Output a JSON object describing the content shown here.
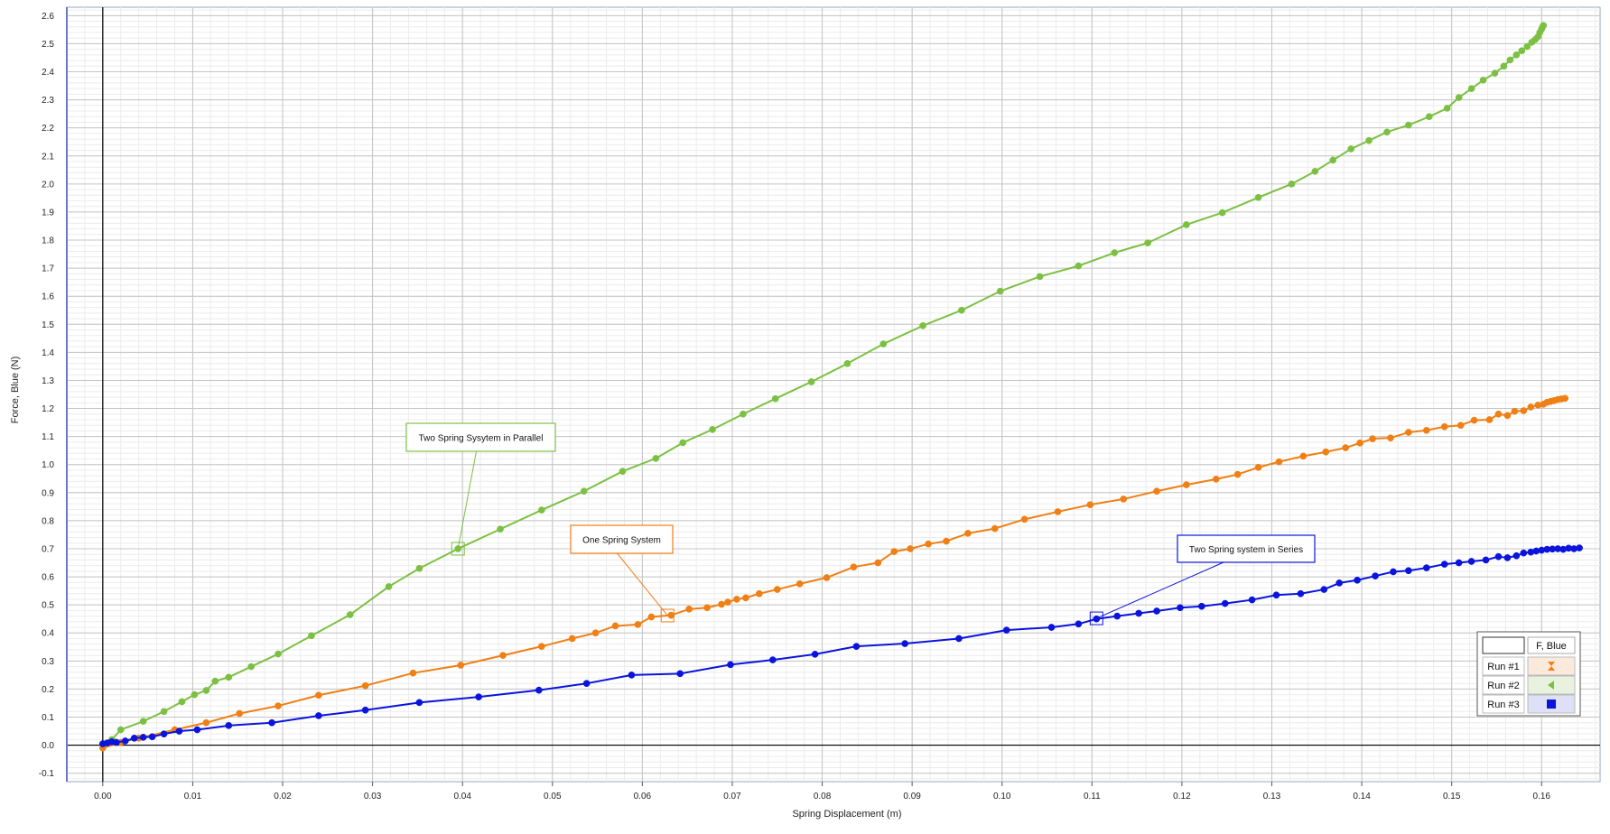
{
  "chart_data": {
    "type": "line",
    "xlabel": "Spring Displacement (m)",
    "ylabel": "Force, Blue (N)",
    "xlim": [
      -0.004,
      0.1665
    ],
    "ylim": [
      -0.13,
      2.63
    ],
    "x_ticks": [
      0.0,
      0.01,
      0.02,
      0.03,
      0.04,
      0.05,
      0.06,
      0.07,
      0.08,
      0.09,
      0.1,
      0.11,
      0.12,
      0.13,
      0.14,
      0.15,
      0.16
    ],
    "x_tick_labels": [
      "0.00",
      "0.01",
      "0.02",
      "0.03",
      "0.04",
      "0.05",
      "0.06",
      "0.07",
      "0.08",
      "0.09",
      "0.10",
      "0.11",
      "0.12",
      "0.13",
      "0.14",
      "0.15",
      "0.16"
    ],
    "y_ticks": [
      -0.1,
      0.0,
      0.1,
      0.2,
      0.3,
      0.4,
      0.5,
      0.6,
      0.7,
      0.8,
      0.9,
      1.0,
      1.1,
      1.2,
      1.3,
      1.4,
      1.5,
      1.6,
      1.7,
      1.8,
      1.9,
      2.0,
      2.1,
      2.2,
      2.3,
      2.4,
      2.5,
      2.6
    ],
    "y_tick_labels": [
      "-0.1",
      "0.0",
      "0.1",
      "0.2",
      "0.3",
      "0.4",
      "0.5",
      "0.6",
      "0.7",
      "0.8",
      "0.9",
      "1.0",
      "1.1",
      "1.2",
      "1.3",
      "1.4",
      "1.5",
      "1.6",
      "1.7",
      "1.8",
      "1.9",
      "2.0",
      "2.1",
      "2.2",
      "2.3",
      "2.4",
      "2.5",
      "2.6"
    ],
    "grid": true,
    "legend_position": "bottom-right",
    "legend": {
      "header": "F, Blue",
      "entries": [
        {
          "label": "Run #1",
          "marker": "hourglass-icon",
          "color": "#F07F14",
          "bg": "#FBE9DC"
        },
        {
          "label": "Run #2",
          "marker": "left-triangle-icon",
          "color": "#7CC043",
          "bg": "#E8F2DF"
        },
        {
          "label": "Run #3",
          "marker": "square-icon",
          "color": "#0A14DC",
          "bg": "#DDE0F6"
        }
      ]
    },
    "series": [
      {
        "color": "#F07F14",
        "x": [
          0.0,
          0.002,
          0.004,
          0.008,
          0.0115,
          0.0152,
          0.0195,
          0.024,
          0.0292,
          0.0345,
          0.0398,
          0.0445,
          0.0488,
          0.0522,
          0.0548,
          0.057,
          0.0595,
          0.061,
          0.0632,
          0.0652,
          0.0672,
          0.0688,
          0.0695,
          0.0705,
          0.0715,
          0.073,
          0.075,
          0.0775,
          0.0805,
          0.0835,
          0.0862,
          0.088,
          0.0898,
          0.0918,
          0.0938,
          0.0962,
          0.0992,
          0.1025,
          0.1062,
          0.1098,
          0.1135,
          0.1172,
          0.1205,
          0.1238,
          0.1262,
          0.1285,
          0.1308,
          0.1335,
          0.136,
          0.1382,
          0.1398,
          0.1412,
          0.1432,
          0.1452,
          0.1472,
          0.1492,
          0.151,
          0.1525,
          0.1542,
          0.1552,
          0.1562,
          0.157,
          0.158,
          0.1588,
          0.1596,
          0.1602,
          0.1606,
          0.161,
          0.1614,
          0.1618,
          0.1622,
          0.1626
        ],
        "y": [
          -0.01,
          0.01,
          0.025,
          0.055,
          0.08,
          0.113,
          0.14,
          0.178,
          0.212,
          0.257,
          0.285,
          0.32,
          0.352,
          0.38,
          0.4,
          0.425,
          0.43,
          0.457,
          0.463,
          0.485,
          0.49,
          0.502,
          0.51,
          0.52,
          0.525,
          0.54,
          0.555,
          0.575,
          0.597,
          0.635,
          0.65,
          0.69,
          0.7,
          0.717,
          0.727,
          0.755,
          0.772,
          0.805,
          0.832,
          0.857,
          0.877,
          0.905,
          0.928,
          0.948,
          0.965,
          0.99,
          1.01,
          1.03,
          1.045,
          1.06,
          1.077,
          1.092,
          1.095,
          1.115,
          1.122,
          1.135,
          1.14,
          1.158,
          1.16,
          1.18,
          1.175,
          1.19,
          1.192,
          1.205,
          1.212,
          1.215,
          1.222,
          1.225,
          1.228,
          1.232,
          1.234,
          1.236
        ]
      },
      {
        "color": "#7CC043",
        "x": [
          0.0,
          0.001,
          0.002,
          0.0045,
          0.0068,
          0.0088,
          0.0102,
          0.0115,
          0.0125,
          0.014,
          0.0165,
          0.0195,
          0.0232,
          0.0275,
          0.0318,
          0.0352,
          0.0395,
          0.0442,
          0.0488,
          0.0535,
          0.0578,
          0.0615,
          0.0645,
          0.0678,
          0.0712,
          0.0748,
          0.0788,
          0.0828,
          0.0868,
          0.0912,
          0.0955,
          0.0998,
          0.1042,
          0.1085,
          0.1125,
          0.1162,
          0.1205,
          0.1245,
          0.1285,
          0.1322,
          0.1348,
          0.1368,
          0.1388,
          0.1408,
          0.1428,
          0.1452,
          0.1475,
          0.1495,
          0.1508,
          0.1522,
          0.1535,
          0.1548,
          0.1558,
          0.1565,
          0.1572,
          0.1578,
          0.1584,
          0.1589,
          0.1593,
          0.1596,
          0.1598,
          0.16,
          0.1601,
          0.1602
        ],
        "y": [
          0.005,
          0.02,
          0.055,
          0.085,
          0.12,
          0.155,
          0.18,
          0.195,
          0.228,
          0.242,
          0.28,
          0.325,
          0.39,
          0.465,
          0.565,
          0.63,
          0.7,
          0.77,
          0.838,
          0.905,
          0.976,
          1.022,
          1.078,
          1.125,
          1.18,
          1.235,
          1.295,
          1.36,
          1.43,
          1.495,
          1.55,
          1.618,
          1.67,
          1.708,
          1.755,
          1.79,
          1.855,
          1.898,
          1.952,
          2.0,
          2.045,
          2.085,
          2.125,
          2.155,
          2.185,
          2.21,
          2.24,
          2.27,
          2.308,
          2.34,
          2.37,
          2.395,
          2.42,
          2.442,
          2.46,
          2.475,
          2.49,
          2.505,
          2.515,
          2.525,
          2.54,
          2.552,
          2.56,
          2.565
        ]
      },
      {
        "color": "#0A14DC",
        "x": [
          0.0,
          0.0005,
          0.001,
          0.0015,
          0.0025,
          0.0035,
          0.0045,
          0.0055,
          0.0068,
          0.0085,
          0.0105,
          0.014,
          0.0188,
          0.024,
          0.0292,
          0.0352,
          0.0418,
          0.0485,
          0.0538,
          0.0588,
          0.0642,
          0.0698,
          0.0745,
          0.0792,
          0.0838,
          0.0892,
          0.0952,
          0.1005,
          0.1055,
          0.1085,
          0.1105,
          0.1128,
          0.1152,
          0.1172,
          0.1198,
          0.1222,
          0.1248,
          0.1278,
          0.1305,
          0.1332,
          0.1358,
          0.1375,
          0.1395,
          0.1415,
          0.1435,
          0.1452,
          0.1472,
          0.1492,
          0.1508,
          0.1522,
          0.1538,
          0.1552,
          0.1562,
          0.1572,
          0.158,
          0.1588,
          0.1594,
          0.16,
          0.1606,
          0.1612,
          0.1618,
          0.1624,
          0.163,
          0.1636,
          0.1642
        ],
        "y": [
          0.005,
          0.008,
          0.012,
          0.01,
          0.015,
          0.025,
          0.028,
          0.03,
          0.04,
          0.05,
          0.055,
          0.07,
          0.08,
          0.105,
          0.125,
          0.152,
          0.172,
          0.196,
          0.22,
          0.25,
          0.255,
          0.287,
          0.304,
          0.324,
          0.352,
          0.362,
          0.38,
          0.41,
          0.42,
          0.432,
          0.45,
          0.46,
          0.47,
          0.478,
          0.49,
          0.495,
          0.505,
          0.518,
          0.535,
          0.54,
          0.555,
          0.578,
          0.588,
          0.603,
          0.618,
          0.622,
          0.632,
          0.645,
          0.65,
          0.655,
          0.66,
          0.672,
          0.668,
          0.675,
          0.685,
          0.688,
          0.692,
          0.695,
          0.698,
          0.699,
          0.7,
          0.698,
          0.702,
          0.7,
          0.703
        ]
      }
    ],
    "annotations": [
      {
        "text": "Two Spring Sysytem in Parallel",
        "target_x": 0.0395,
        "target_y": 0.7,
        "color": "#7CC043"
      },
      {
        "text": "One Spring System",
        "target_x": 0.0628,
        "target_y": 0.462,
        "color": "#F07F14"
      },
      {
        "text": "Two Spring system in Series",
        "target_x": 0.1105,
        "target_y": 0.452,
        "color": "#0A14DC"
      }
    ]
  }
}
